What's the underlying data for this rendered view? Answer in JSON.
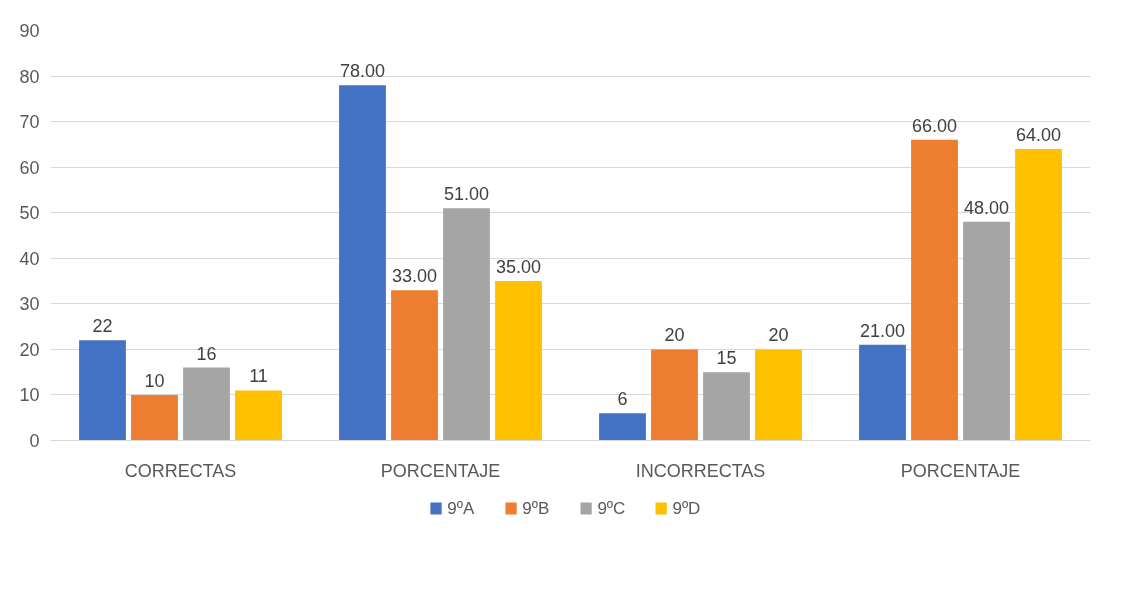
{
  "chart_data": {
    "type": "bar",
    "categories": [
      "CORRECTAS",
      "PORCENTAJE",
      "INCORRECTAS",
      "PORCENTAJE"
    ],
    "series": [
      {
        "name": "9ºA",
        "color": "#4472c4",
        "values": [
          22,
          78,
          6,
          21
        ],
        "value_labels": [
          "22",
          "78.00",
          "6",
          "21.00"
        ]
      },
      {
        "name": "9ºB",
        "color": "#ed7d31",
        "values": [
          10,
          33,
          20,
          66
        ],
        "value_labels": [
          "10",
          "33.00",
          "20",
          "66.00"
        ]
      },
      {
        "name": "9ºC",
        "color": "#a5a5a5",
        "values": [
          16,
          51,
          15,
          48
        ],
        "value_labels": [
          "16",
          "51.00",
          "15",
          "48.00"
        ]
      },
      {
        "name": "9ºD",
        "color": "#ffc000",
        "values": [
          11,
          35,
          20,
          64
        ],
        "value_labels": [
          "11",
          "35.00",
          "20",
          "64.00"
        ]
      }
    ],
    "ylim": [
      0,
      90
    ],
    "yticks": [
      0,
      10,
      20,
      30,
      40,
      50,
      60,
      70,
      80,
      90
    ],
    "grid": "y",
    "legend": "bottom"
  }
}
